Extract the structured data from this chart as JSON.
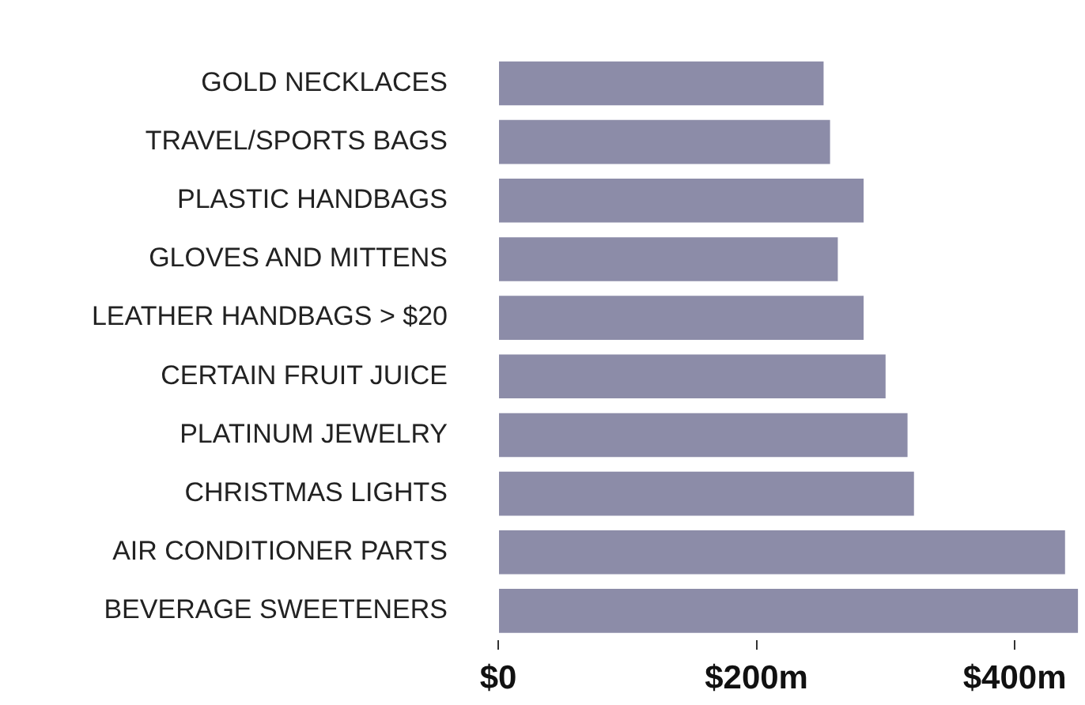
{
  "chart_data": {
    "type": "bar",
    "orientation": "horizontal",
    "categories": [
      "GOLD NECKLACES",
      "TRAVEL/SPORTS BAGS",
      "PLASTIC HANDBAGS",
      "GLOVES AND MITTENS",
      "LEATHER HANDBAGS > $20",
      "CERTAIN FRUIT JUICE",
      "PLATINUM JEWELRY",
      "CHRISTMAS LIGHTS",
      "AIR CONDITIONER PARTS",
      "BEVERAGE SWEETENERS"
    ],
    "values": [
      252,
      257,
      283,
      263,
      283,
      300,
      317,
      322,
      439,
      449
    ],
    "color": "#8c8ca8",
    "xlim": [
      0,
      452
    ],
    "xticks": [
      {
        "value": 0,
        "label": "$0"
      },
      {
        "value": 200,
        "label": "$200m"
      },
      {
        "value": 400,
        "label": "$400m"
      }
    ],
    "grid": false,
    "legend": false
  }
}
